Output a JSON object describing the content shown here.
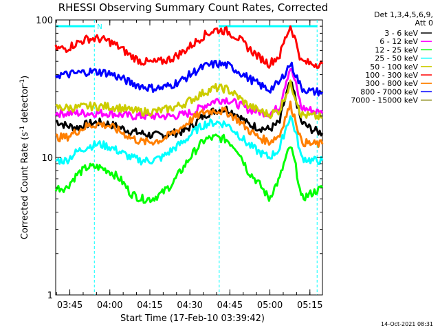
{
  "chart_data": {
    "type": "line",
    "title": "RHESSI Observing Summary Count Rates, Corrected",
    "xlabel": "Start Time (17-Feb-10 03:39:42)",
    "ylabel": "Corrected Count Rate (s",
    "ylabel_sup": "-1",
    "ylabel_tail": " detector",
    "ylabel_tail_sup": "-1",
    "ylabel_close": ")",
    "yscale": "log",
    "ylim": [
      1,
      100
    ],
    "xlim_minutes": [
      0,
      100
    ],
    "x_ticks": [
      {
        "label": "03:45",
        "minute": 5.3
      },
      {
        "label": "04:00",
        "minute": 20.3
      },
      {
        "label": "04:15",
        "minute": 35.3
      },
      {
        "label": "04:30",
        "minute": 50.3
      },
      {
        "label": "04:45",
        "minute": 65.3
      },
      {
        "label": "05:00",
        "minute": 80.3
      },
      {
        "label": "05:15",
        "minute": 95.3
      }
    ],
    "y_ticks": [
      {
        "label": "1",
        "value": 1
      },
      {
        "label": "10",
        "value": 10
      },
      {
        "label": "100",
        "value": 100
      }
    ],
    "legend": {
      "header_line1": "Det 1,3,4,5,6,9,",
      "header_line2": "Att 0",
      "placement": "right"
    },
    "night_marker": "N",
    "night_intervals": [
      [
        0,
        14.5
      ],
      [
        61.3,
        98
      ]
    ],
    "night_level": 90,
    "series": [
      {
        "name": "3 - 6 keV",
        "color": "#000000",
        "values": [
          18.5,
          17,
          16.5,
          17.5,
          18,
          17.5,
          16.5,
          15.5,
          15,
          14.5,
          14.5,
          15,
          15.5,
          17.5,
          20.5,
          22,
          22.5,
          20.5,
          17.5,
          16.5,
          16,
          18,
          35,
          18,
          16,
          15
        ]
      },
      {
        "name": "6 - 12 keV",
        "color": "#ff00ff",
        "values": [
          21,
          21,
          21,
          21,
          21,
          21,
          20.5,
          20,
          20,
          20,
          20,
          20,
          20.5,
          21.5,
          24,
          26,
          26.5,
          24.5,
          22.5,
          21.5,
          21,
          23,
          45,
          23,
          22,
          21
        ]
      },
      {
        "name": "12 - 25 keV",
        "color": "#00ff00",
        "values": [
          6,
          6,
          7.5,
          8.5,
          8.5,
          8,
          7,
          5.5,
          5,
          5,
          5.5,
          6.5,
          8.5,
          11,
          13.5,
          14,
          13.5,
          11.5,
          8,
          6.5,
          5,
          7,
          12,
          5,
          5.5,
          6
        ]
      },
      {
        "name": "25 - 50 keV",
        "color": "#00ffff",
        "values": [
          9.5,
          9.5,
          11,
          12,
          12.5,
          12,
          11,
          10,
          9.5,
          9.5,
          10,
          11.5,
          13,
          15.5,
          17.5,
          18,
          17.5,
          15,
          12.5,
          11,
          10,
          11.5,
          20,
          10,
          9.5,
          9.5
        ]
      },
      {
        "name": "50 - 100 keV",
        "color": "#cccc00",
        "values": [
          23,
          23,
          23,
          23.5,
          23.5,
          23.5,
          23,
          22,
          21.5,
          21.5,
          22,
          23,
          24.5,
          27,
          30,
          32,
          31.5,
          28,
          24,
          22,
          20.5,
          22,
          34,
          20.5,
          20,
          19.5
        ]
      },
      {
        "name": "100 - 300 keV",
        "color": "#ff0000",
        "values": [
          62,
          62,
          68,
          73,
          73,
          70,
          63,
          55,
          50,
          49,
          50,
          53,
          59,
          68,
          78,
          85,
          83,
          75,
          63,
          54,
          48,
          55,
          90,
          50,
          48,
          48
        ]
      },
      {
        "name": "300 - 800 keV",
        "color": "#ff7f00",
        "values": [
          14,
          14,
          15.5,
          17,
          17.5,
          17,
          15.5,
          14,
          13,
          13,
          13.5,
          15,
          17,
          19.5,
          21.5,
          22,
          21.5,
          19,
          16,
          14,
          13,
          14.5,
          24,
          13,
          12.5,
          12.5
        ]
      },
      {
        "name": "800 - 7000 keV",
        "color": "#0000ff",
        "values": [
          40,
          40,
          41,
          42,
          42,
          41,
          38,
          35,
          33,
          32,
          32,
          34,
          37,
          42,
          46,
          48,
          47,
          43,
          38,
          34,
          31,
          35,
          48,
          32,
          30,
          30
        ]
      },
      {
        "name": "7000 - 15000 keV",
        "color": "#7f7f00",
        "values": []
      }
    ],
    "series_x_step_minutes": 4
  },
  "timestamp": "14-Oct-2021 08:31"
}
